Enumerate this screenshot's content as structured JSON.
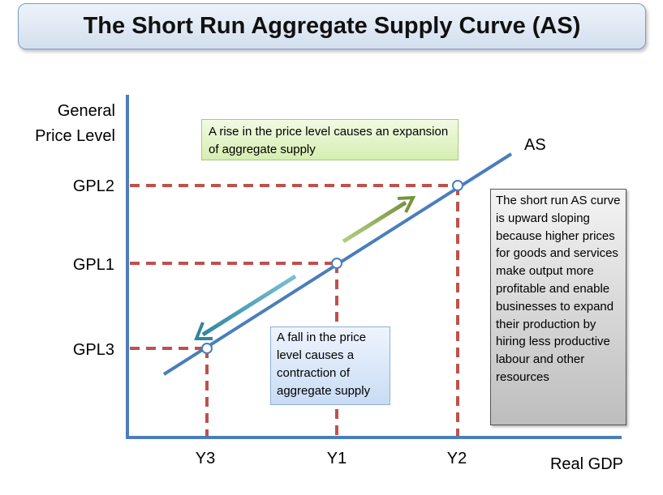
{
  "title": "The Short Run Aggregate Supply Curve (AS)",
  "axes": {
    "y_label_line1": "General",
    "y_label_line2": "Price Level",
    "x_label": "Real GDP"
  },
  "curve_label": "AS",
  "price_levels": [
    "GPL2",
    "GPL1",
    "GPL3"
  ],
  "output_levels": [
    "Y3",
    "Y1",
    "Y2"
  ],
  "notes": {
    "rise": "A rise in the price level causes an expansion of aggregate supply",
    "fall": "A fall in the price level causes a contraction of aggregate supply",
    "explanation": "The short run AS curve is upward sloping because higher prices for goods and services make output more profitable and enable businesses to expand their production by hiring less productive labour and other resources"
  },
  "colors": {
    "curve": "#4a7ebb",
    "axis": "#4a7ebb",
    "guides": "#c0504d",
    "arrow_up": "#9bbb59",
    "arrow_down": "#4bacc6"
  }
}
